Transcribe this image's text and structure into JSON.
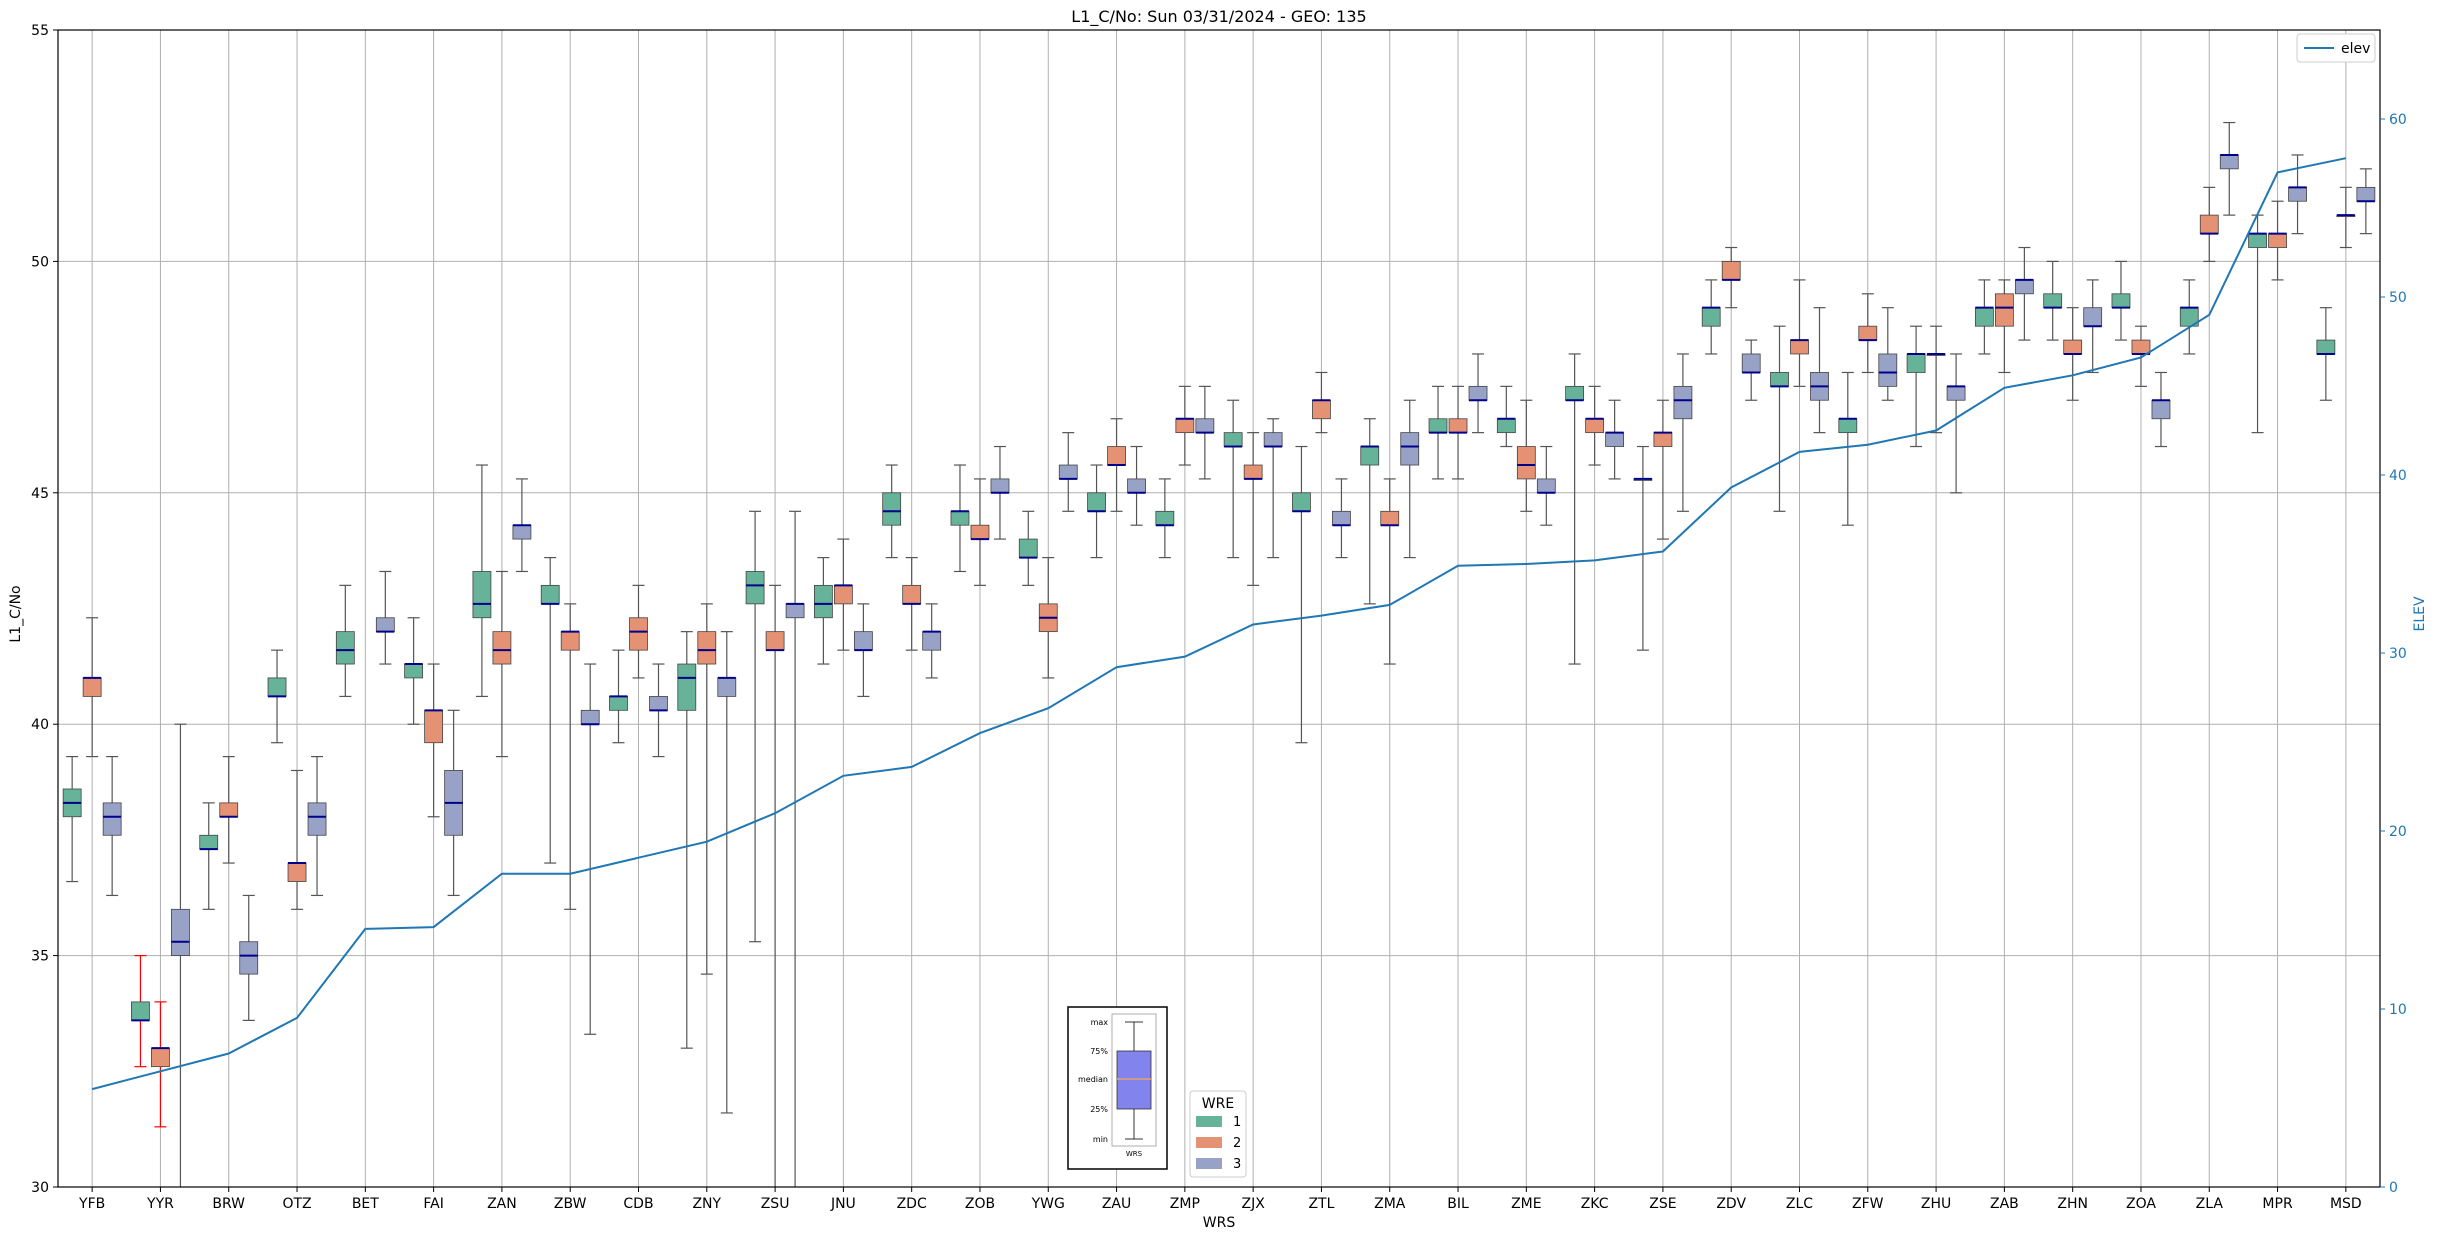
{
  "chart_data": {
    "type": "box",
    "title": "L1_C/No: Sun 03/31/2024 - GEO: 135",
    "xlabel": "WRS",
    "ylabel": "L1_C/No",
    "y2label": "ELEV",
    "ylim": [
      30,
      55
    ],
    "y2lim": [
      0,
      65
    ],
    "yticks": [
      30,
      35,
      40,
      45,
      50,
      55
    ],
    "y2ticks": [
      0,
      10,
      20,
      30,
      40,
      50,
      60
    ],
    "grid": true,
    "categories": [
      "YFB",
      "YYR",
      "BRW",
      "OTZ",
      "BET",
      "FAI",
      "ZAN",
      "ZBW",
      "CDB",
      "ZNY",
      "ZSU",
      "JNU",
      "ZDC",
      "ZOB",
      "YWG",
      "ZAU",
      "ZMP",
      "ZJX",
      "ZTL",
      "ZMA",
      "BIL",
      "ZME",
      "ZKC",
      "ZSE",
      "ZDV",
      "ZLC",
      "ZFW",
      "ZHU",
      "ZAB",
      "ZHN",
      "ZOA",
      "ZLA",
      "MPR",
      "MSD"
    ],
    "wre_colors": {
      "1": "#66b39a",
      "2": "#e59173",
      "3": "#98a2c7"
    },
    "median_color": "#00008b",
    "whisker_color": "#555555",
    "highlight_whisker_color": "#ff0000",
    "line_color": "#1f77b4",
    "boxes": [
      {
        "cat": "YFB",
        "wre": 1,
        "min": 36.6,
        "q1": 38.0,
        "med": 38.3,
        "q3": 38.6,
        "max": 39.3
      },
      {
        "cat": "YFB",
        "wre": 2,
        "min": 39.3,
        "q1": 40.6,
        "med": 41.0,
        "q3": 41.0,
        "max": 42.3
      },
      {
        "cat": "YFB",
        "wre": 3,
        "min": 36.3,
        "q1": 37.6,
        "med": 38.0,
        "q3": 38.3,
        "max": 39.3
      },
      {
        "cat": "YYR",
        "wre": 1,
        "min": 32.6,
        "q1": 33.6,
        "med": 33.6,
        "q3": 34.0,
        "max": 35.0,
        "highlight": true
      },
      {
        "cat": "YYR",
        "wre": 2,
        "min": 31.3,
        "q1": 32.6,
        "med": 33.0,
        "q3": 33.0,
        "max": 34.0,
        "highlight": true
      },
      {
        "cat": "YYR",
        "wre": 3,
        "min": 30.0,
        "q1": 35.0,
        "med": 35.3,
        "q3": 36.0,
        "max": 40.0
      },
      {
        "cat": "BRW",
        "wre": 1,
        "min": 36.0,
        "q1": 37.3,
        "med": 37.3,
        "q3": 37.6,
        "max": 38.3
      },
      {
        "cat": "BRW",
        "wre": 2,
        "min": 37.0,
        "q1": 38.0,
        "med": 38.0,
        "q3": 38.3,
        "max": 39.3
      },
      {
        "cat": "BRW",
        "wre": 3,
        "min": 33.6,
        "q1": 34.6,
        "med": 35.0,
        "q3": 35.3,
        "max": 36.3
      },
      {
        "cat": "OTZ",
        "wre": 1,
        "min": 39.6,
        "q1": 40.6,
        "med": 40.6,
        "q3": 41.0,
        "max": 41.6
      },
      {
        "cat": "OTZ",
        "wre": 2,
        "min": 36.0,
        "q1": 36.6,
        "med": 37.0,
        "q3": 37.0,
        "max": 39.0
      },
      {
        "cat": "OTZ",
        "wre": 3,
        "min": 36.3,
        "q1": 37.6,
        "med": 38.0,
        "q3": 38.3,
        "max": 39.3
      },
      {
        "cat": "BET",
        "wre": 1,
        "min": 40.6,
        "q1": 41.3,
        "med": 41.6,
        "q3": 42.0,
        "max": 43.0
      },
      {
        "cat": "BET",
        "wre": 3,
        "min": 41.3,
        "q1": 42.0,
        "med": 42.0,
        "q3": 42.3,
        "max": 43.3
      },
      {
        "cat": "FAI",
        "wre": 1,
        "min": 40.0,
        "q1": 41.0,
        "med": 41.3,
        "q3": 41.3,
        "max": 42.3
      },
      {
        "cat": "FAI",
        "wre": 2,
        "min": 38.0,
        "q1": 39.6,
        "med": 40.3,
        "q3": 40.3,
        "max": 41.3
      },
      {
        "cat": "FAI",
        "wre": 3,
        "min": 36.3,
        "q1": 37.6,
        "med": 38.3,
        "q3": 39.0,
        "max": 40.3
      },
      {
        "cat": "ZAN",
        "wre": 1,
        "min": 40.6,
        "q1": 42.3,
        "med": 42.6,
        "q3": 43.3,
        "max": 45.6
      },
      {
        "cat": "ZAN",
        "wre": 2,
        "min": 39.3,
        "q1": 41.3,
        "med": 41.6,
        "q3": 42.0,
        "max": 43.3
      },
      {
        "cat": "ZAN",
        "wre": 3,
        "min": 43.3,
        "q1": 44.0,
        "med": 44.3,
        "q3": 44.3,
        "max": 45.3
      },
      {
        "cat": "ZBW",
        "wre": 1,
        "min": 37.0,
        "q1": 42.6,
        "med": 42.6,
        "q3": 43.0,
        "max": 43.6
      },
      {
        "cat": "ZBW",
        "wre": 2,
        "min": 36.0,
        "q1": 41.6,
        "med": 42.0,
        "q3": 42.0,
        "max": 42.6
      },
      {
        "cat": "ZBW",
        "wre": 3,
        "min": 33.3,
        "q1": 40.0,
        "med": 40.0,
        "q3": 40.3,
        "max": 41.3
      },
      {
        "cat": "CDB",
        "wre": 1,
        "min": 39.6,
        "q1": 40.3,
        "med": 40.6,
        "q3": 40.6,
        "max": 41.6
      },
      {
        "cat": "CDB",
        "wre": 2,
        "min": 41.0,
        "q1": 41.6,
        "med": 42.0,
        "q3": 42.3,
        "max": 43.0
      },
      {
        "cat": "CDB",
        "wre": 3,
        "min": 39.3,
        "q1": 40.3,
        "med": 40.3,
        "q3": 40.6,
        "max": 41.3
      },
      {
        "cat": "ZNY",
        "wre": 1,
        "min": 33.0,
        "q1": 40.3,
        "med": 41.0,
        "q3": 41.3,
        "max": 42.0
      },
      {
        "cat": "ZNY",
        "wre": 2,
        "min": 34.6,
        "q1": 41.3,
        "med": 41.6,
        "q3": 42.0,
        "max": 42.6
      },
      {
        "cat": "ZNY",
        "wre": 3,
        "min": 31.6,
        "q1": 40.6,
        "med": 41.0,
        "q3": 41.0,
        "max": 42.0
      },
      {
        "cat": "ZSU",
        "wre": 1,
        "min": 35.3,
        "q1": 42.6,
        "med": 43.0,
        "q3": 43.3,
        "max": 44.6
      },
      {
        "cat": "ZSU",
        "wre": 2,
        "min": 30.0,
        "q1": 41.6,
        "med": 41.6,
        "q3": 42.0,
        "max": 43.0
      },
      {
        "cat": "ZSU",
        "wre": 3,
        "min": 30.0,
        "q1": 42.3,
        "med": 42.6,
        "q3": 42.6,
        "max": 44.6
      },
      {
        "cat": "JNU",
        "wre": 1,
        "min": 41.3,
        "q1": 42.3,
        "med": 42.6,
        "q3": 43.0,
        "max": 43.6
      },
      {
        "cat": "JNU",
        "wre": 2,
        "min": 41.6,
        "q1": 42.6,
        "med": 43.0,
        "q3": 43.0,
        "max": 44.0
      },
      {
        "cat": "JNU",
        "wre": 3,
        "min": 40.6,
        "q1": 41.6,
        "med": 41.6,
        "q3": 42.0,
        "max": 42.6
      },
      {
        "cat": "ZDC",
        "wre": 1,
        "min": 43.6,
        "q1": 44.3,
        "med": 44.6,
        "q3": 45.0,
        "max": 45.6
      },
      {
        "cat": "ZDC",
        "wre": 2,
        "min": 41.6,
        "q1": 42.6,
        "med": 42.6,
        "q3": 43.0,
        "max": 43.6
      },
      {
        "cat": "ZDC",
        "wre": 3,
        "min": 41.0,
        "q1": 41.6,
        "med": 42.0,
        "q3": 42.0,
        "max": 42.6
      },
      {
        "cat": "ZOB",
        "wre": 1,
        "min": 43.3,
        "q1": 44.3,
        "med": 44.6,
        "q3": 44.6,
        "max": 45.6
      },
      {
        "cat": "ZOB",
        "wre": 2,
        "min": 43.0,
        "q1": 44.0,
        "med": 44.0,
        "q3": 44.3,
        "max": 45.3
      },
      {
        "cat": "ZOB",
        "wre": 3,
        "min": 44.0,
        "q1": 45.0,
        "med": 45.0,
        "q3": 45.3,
        "max": 46.0
      },
      {
        "cat": "YWG",
        "wre": 1,
        "min": 43.0,
        "q1": 43.6,
        "med": 43.6,
        "q3": 44.0,
        "max": 44.6
      },
      {
        "cat": "YWG",
        "wre": 2,
        "min": 41.0,
        "q1": 42.0,
        "med": 42.3,
        "q3": 42.6,
        "max": 43.6
      },
      {
        "cat": "YWG",
        "wre": 3,
        "min": 44.6,
        "q1": 45.3,
        "med": 45.3,
        "q3": 45.6,
        "max": 46.3
      },
      {
        "cat": "ZAU",
        "wre": 1,
        "min": 43.6,
        "q1": 44.6,
        "med": 44.6,
        "q3": 45.0,
        "max": 45.6
      },
      {
        "cat": "ZAU",
        "wre": 2,
        "min": 44.6,
        "q1": 45.6,
        "med": 45.6,
        "q3": 46.0,
        "max": 46.6
      },
      {
        "cat": "ZAU",
        "wre": 3,
        "min": 44.3,
        "q1": 45.0,
        "med": 45.0,
        "q3": 45.3,
        "max": 46.0
      },
      {
        "cat": "ZMP",
        "wre": 1,
        "min": 43.6,
        "q1": 44.3,
        "med": 44.3,
        "q3": 44.6,
        "max": 45.3
      },
      {
        "cat": "ZMP",
        "wre": 2,
        "min": 45.6,
        "q1": 46.3,
        "med": 46.6,
        "q3": 46.6,
        "max": 47.3
      },
      {
        "cat": "ZMP",
        "wre": 3,
        "min": 45.3,
        "q1": 46.3,
        "med": 46.3,
        "q3": 46.6,
        "max": 47.3
      },
      {
        "cat": "ZJX",
        "wre": 1,
        "min": 43.6,
        "q1": 46.0,
        "med": 46.0,
        "q3": 46.3,
        "max": 47.0
      },
      {
        "cat": "ZJX",
        "wre": 2,
        "min": 43.0,
        "q1": 45.3,
        "med": 45.3,
        "q3": 45.6,
        "max": 46.3
      },
      {
        "cat": "ZJX",
        "wre": 3,
        "min": 43.6,
        "q1": 46.0,
        "med": 46.0,
        "q3": 46.3,
        "max": 46.6
      },
      {
        "cat": "ZTL",
        "wre": 1,
        "min": 39.6,
        "q1": 44.6,
        "med": 44.6,
        "q3": 45.0,
        "max": 46.0
      },
      {
        "cat": "ZTL",
        "wre": 2,
        "min": 46.3,
        "q1": 46.6,
        "med": 47.0,
        "q3": 47.0,
        "max": 47.6
      },
      {
        "cat": "ZTL",
        "wre": 3,
        "min": 43.6,
        "q1": 44.3,
        "med": 44.3,
        "q3": 44.6,
        "max": 45.3
      },
      {
        "cat": "ZMA",
        "wre": 1,
        "min": 42.6,
        "q1": 45.6,
        "med": 46.0,
        "q3": 46.0,
        "max": 46.6
      },
      {
        "cat": "ZMA",
        "wre": 2,
        "min": 41.3,
        "q1": 44.3,
        "med": 44.3,
        "q3": 44.6,
        "max": 45.3
      },
      {
        "cat": "ZMA",
        "wre": 3,
        "min": 43.6,
        "q1": 45.6,
        "med": 46.0,
        "q3": 46.3,
        "max": 47.0
      },
      {
        "cat": "BIL",
        "wre": 1,
        "min": 45.3,
        "q1": 46.3,
        "med": 46.3,
        "q3": 46.6,
        "max": 47.3
      },
      {
        "cat": "BIL",
        "wre": 2,
        "min": 45.3,
        "q1": 46.3,
        "med": 46.3,
        "q3": 46.6,
        "max": 47.3
      },
      {
        "cat": "BIL",
        "wre": 3,
        "min": 46.3,
        "q1": 47.0,
        "med": 47.0,
        "q3": 47.3,
        "max": 48.0
      },
      {
        "cat": "ZME",
        "wre": 1,
        "min": 46.0,
        "q1": 46.3,
        "med": 46.6,
        "q3": 46.6,
        "max": 47.3
      },
      {
        "cat": "ZME",
        "wre": 2,
        "min": 44.6,
        "q1": 45.3,
        "med": 45.6,
        "q3": 46.0,
        "max": 47.0
      },
      {
        "cat": "ZME",
        "wre": 3,
        "min": 44.3,
        "q1": 45.0,
        "med": 45.0,
        "q3": 45.3,
        "max": 46.0
      },
      {
        "cat": "ZKC",
        "wre": 1,
        "min": 41.3,
        "q1": 47.0,
        "med": 47.0,
        "q3": 47.3,
        "max": 48.0
      },
      {
        "cat": "ZKC",
        "wre": 2,
        "min": 45.6,
        "q1": 46.3,
        "med": 46.6,
        "q3": 46.6,
        "max": 47.3
      },
      {
        "cat": "ZKC",
        "wre": 3,
        "min": 45.3,
        "q1": 46.0,
        "med": 46.3,
        "q3": 46.3,
        "max": 47.0
      },
      {
        "cat": "ZSE",
        "wre": 1,
        "min": 41.6,
        "q1": 45.3,
        "med": 45.3,
        "q3": 45.3,
        "max": 46.0
      },
      {
        "cat": "ZSE",
        "wre": 2,
        "min": 44.0,
        "q1": 46.0,
        "med": 46.3,
        "q3": 46.3,
        "max": 47.0
      },
      {
        "cat": "ZSE",
        "wre": 3,
        "min": 44.6,
        "q1": 46.6,
        "med": 47.0,
        "q3": 47.3,
        "max": 48.0
      },
      {
        "cat": "ZDV",
        "wre": 1,
        "min": 48.0,
        "q1": 48.6,
        "med": 49.0,
        "q3": 49.0,
        "max": 49.6
      },
      {
        "cat": "ZDV",
        "wre": 2,
        "min": 49.0,
        "q1": 49.6,
        "med": 49.6,
        "q3": 50.0,
        "max": 50.3
      },
      {
        "cat": "ZDV",
        "wre": 3,
        "min": 47.0,
        "q1": 47.6,
        "med": 47.6,
        "q3": 48.0,
        "max": 48.3
      },
      {
        "cat": "ZLC",
        "wre": 1,
        "min": 44.6,
        "q1": 47.3,
        "med": 47.3,
        "q3": 47.6,
        "max": 48.6
      },
      {
        "cat": "ZLC",
        "wre": 2,
        "min": 47.3,
        "q1": 48.0,
        "med": 48.3,
        "q3": 48.3,
        "max": 49.6
      },
      {
        "cat": "ZLC",
        "wre": 3,
        "min": 46.3,
        "q1": 47.0,
        "med": 47.3,
        "q3": 47.6,
        "max": 49.0
      },
      {
        "cat": "ZFW",
        "wre": 1,
        "min": 44.3,
        "q1": 46.3,
        "med": 46.6,
        "q3": 46.6,
        "max": 47.6
      },
      {
        "cat": "ZFW",
        "wre": 2,
        "min": 47.6,
        "q1": 48.3,
        "med": 48.3,
        "q3": 48.6,
        "max": 49.3
      },
      {
        "cat": "ZFW",
        "wre": 3,
        "min": 47.0,
        "q1": 47.3,
        "med": 47.6,
        "q3": 48.0,
        "max": 49.0
      },
      {
        "cat": "ZHU",
        "wre": 1,
        "min": 46.0,
        "q1": 47.6,
        "med": 48.0,
        "q3": 48.0,
        "max": 48.6
      },
      {
        "cat": "ZHU",
        "wre": 2,
        "min": 46.3,
        "q1": 48.0,
        "med": 48.0,
        "q3": 48.0,
        "max": 48.6
      },
      {
        "cat": "ZHU",
        "wre": 3,
        "min": 45.0,
        "q1": 47.0,
        "med": 47.3,
        "q3": 47.3,
        "max": 48.0
      },
      {
        "cat": "ZAB",
        "wre": 1,
        "min": 48.0,
        "q1": 48.6,
        "med": 49.0,
        "q3": 49.0,
        "max": 49.6
      },
      {
        "cat": "ZAB",
        "wre": 2,
        "min": 47.6,
        "q1": 48.6,
        "med": 49.0,
        "q3": 49.3,
        "max": 49.6
      },
      {
        "cat": "ZAB",
        "wre": 3,
        "min": 48.3,
        "q1": 49.3,
        "med": 49.6,
        "q3": 49.6,
        "max": 50.3
      },
      {
        "cat": "ZHN",
        "wre": 1,
        "min": 48.3,
        "q1": 49.0,
        "med": 49.0,
        "q3": 49.3,
        "max": 50.0
      },
      {
        "cat": "ZHN",
        "wre": 2,
        "min": 47.0,
        "q1": 48.0,
        "med": 48.0,
        "q3": 48.3,
        "max": 49.0
      },
      {
        "cat": "ZHN",
        "wre": 3,
        "min": 47.6,
        "q1": 48.6,
        "med": 48.6,
        "q3": 49.0,
        "max": 49.6
      },
      {
        "cat": "ZOA",
        "wre": 1,
        "min": 48.3,
        "q1": 49.0,
        "med": 49.0,
        "q3": 49.3,
        "max": 50.0
      },
      {
        "cat": "ZOA",
        "wre": 2,
        "min": 47.3,
        "q1": 48.0,
        "med": 48.0,
        "q3": 48.3,
        "max": 48.6
      },
      {
        "cat": "ZOA",
        "wre": 3,
        "min": 46.0,
        "q1": 46.6,
        "med": 47.0,
        "q3": 47.0,
        "max": 47.6
      },
      {
        "cat": "ZLA",
        "wre": 1,
        "min": 48.0,
        "q1": 48.6,
        "med": 49.0,
        "q3": 49.0,
        "max": 49.6
      },
      {
        "cat": "ZLA",
        "wre": 2,
        "min": 50.0,
        "q1": 50.6,
        "med": 50.6,
        "q3": 51.0,
        "max": 51.6
      },
      {
        "cat": "ZLA",
        "wre": 3,
        "min": 51.0,
        "q1": 52.0,
        "med": 52.3,
        "q3": 52.3,
        "max": 53.0
      },
      {
        "cat": "MPR",
        "wre": 1,
        "min": 46.3,
        "q1": 50.3,
        "med": 50.6,
        "q3": 50.6,
        "max": 51.0
      },
      {
        "cat": "MPR",
        "wre": 2,
        "min": 49.6,
        "q1": 50.3,
        "med": 50.6,
        "q3": 50.6,
        "max": 51.3
      },
      {
        "cat": "MPR",
        "wre": 3,
        "min": 50.6,
        "q1": 51.3,
        "med": 51.6,
        "q3": 51.6,
        "max": 52.3
      },
      {
        "cat": "MSD",
        "wre": 1,
        "min": 47.0,
        "q1": 48.0,
        "med": 48.0,
        "q3": 48.3,
        "max": 49.0
      },
      {
        "cat": "MSD",
        "wre": 2,
        "min": 50.3,
        "q1": 51.0,
        "med": 51.0,
        "q3": 51.0,
        "max": 51.6
      },
      {
        "cat": "MSD",
        "wre": 3,
        "min": 50.6,
        "q1": 51.3,
        "med": 51.3,
        "q3": 51.6,
        "max": 52.0
      }
    ],
    "series": [
      {
        "name": "elev",
        "axis": "right",
        "values": [
          5.5,
          6.5,
          7.5,
          9.5,
          14.5,
          14.6,
          17.6,
          17.6,
          18.5,
          19.4,
          21.0,
          23.1,
          23.6,
          25.5,
          26.9,
          29.2,
          29.8,
          31.6,
          32.1,
          32.7,
          34.9,
          35.0,
          35.2,
          35.7,
          39.3,
          41.3,
          41.7,
          42.5,
          44.9,
          45.6,
          46.6,
          49.0,
          57.0,
          57.8
        ]
      }
    ],
    "legend_line": {
      "label": "elev",
      "position": "top-right"
    },
    "legend_wre": {
      "title": "WRE",
      "entries": [
        "1",
        "2",
        "3"
      ],
      "position": "bottom-center"
    },
    "explainer": {
      "labels": [
        "max",
        "75%",
        "median",
        "25%",
        "min"
      ],
      "xlabel": "WRS",
      "box_color": "#8383ee",
      "median_color": "#e5a070"
    }
  }
}
